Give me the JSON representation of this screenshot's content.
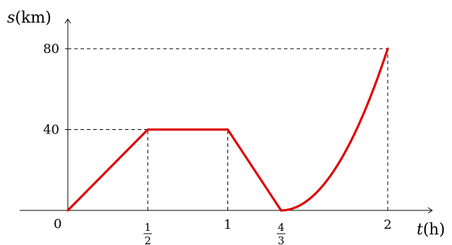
{
  "chart_data": {
    "type": "line",
    "axes": {
      "y_label_var": "s",
      "y_label_unit": "(km)",
      "x_label_var": "t",
      "x_label_unit": "(h)",
      "origin_label": "0"
    },
    "x_ticks": [
      {
        "value": 0.5,
        "kind": "frac",
        "num": "1",
        "den": "2"
      },
      {
        "value": 1,
        "kind": "text",
        "text": "1"
      },
      {
        "value": 1.3333,
        "kind": "frac",
        "num": "4",
        "den": "3"
      },
      {
        "value": 2,
        "kind": "text",
        "text": "2"
      }
    ],
    "y_ticks": [
      {
        "value": 40,
        "text": "40"
      },
      {
        "value": 80,
        "text": "80"
      }
    ],
    "series": [
      {
        "color": "#e00000",
        "segments": [
          {
            "kind": "line",
            "points": [
              [
                0,
                0
              ],
              [
                0.5,
                40
              ],
              [
                1,
                40
              ],
              [
                1.3333,
                0
              ]
            ]
          },
          {
            "kind": "parabola",
            "vertex": [
              1.3333,
              0
            ],
            "to": [
              2,
              80
            ]
          }
        ]
      }
    ],
    "guides": {
      "vertical_at_x": [
        0.5,
        1,
        1.3333,
        2
      ],
      "horizontal_at_y": [
        40,
        80
      ]
    },
    "xlim": [
      -0.6,
      2.6
    ],
    "ylim": [
      0,
      80
    ],
    "grid": false
  }
}
